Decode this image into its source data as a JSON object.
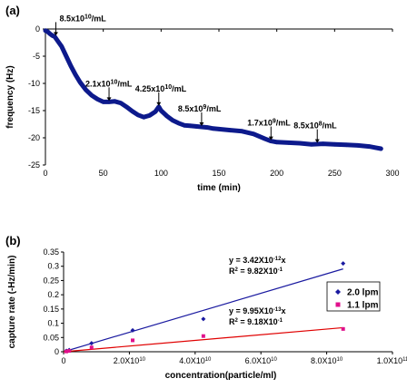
{
  "panels": {
    "a": "(a)",
    "b": "(b)"
  },
  "chart_data": [
    {
      "type": "line",
      "xlabel": "time (min)",
      "ylabel": "frequency (Hz)",
      "xlim": [
        0,
        300
      ],
      "ylim": [
        -25,
        0
      ],
      "xticks": [
        "0",
        "50",
        "100",
        "150",
        "200",
        "250",
        "300"
      ],
      "yticks": [
        "0",
        "-5",
        "-10",
        "-15",
        "-20",
        "-25"
      ],
      "color": "#0d1a8c",
      "grid": false,
      "series": [
        {
          "x": [
            0,
            2,
            4,
            6,
            8,
            10,
            14,
            18,
            22,
            26,
            30,
            35,
            40,
            45,
            50,
            55,
            60,
            65,
            70,
            75,
            80,
            85,
            90,
            95,
            98,
            100,
            105,
            110,
            115,
            120,
            125,
            130,
            135,
            140,
            145,
            150,
            160,
            170,
            180,
            190,
            195,
            200,
            210,
            220,
            230,
            240,
            250,
            260,
            270,
            280,
            285,
            290
          ],
          "y": [
            -0.3,
            -0.5,
            -0.9,
            -1.2,
            -1.4,
            -2.0,
            -3.2,
            -5.0,
            -6.8,
            -8.4,
            -9.8,
            -11.2,
            -12.2,
            -12.9,
            -13.4,
            -13.4,
            -13.3,
            -13.6,
            -14.3,
            -15.1,
            -15.8,
            -16.2,
            -15.9,
            -15.2,
            -14.3,
            -15.0,
            -16.0,
            -16.8,
            -17.3,
            -17.7,
            -17.8,
            -17.9,
            -18.0,
            -18.1,
            -18.3,
            -18.4,
            -18.6,
            -18.8,
            -19.3,
            -20.2,
            -20.6,
            -20.8,
            -20.9,
            -21.0,
            -21.2,
            -21.1,
            -21.2,
            -21.3,
            -21.4,
            -21.6,
            -21.8,
            -22.0
          ]
        }
      ],
      "annotations": [
        {
          "base": "8.5x10",
          "exp": "10",
          "unit": "/mL",
          "x": 9,
          "y": -1.4
        },
        {
          "base": "2.1x10",
          "exp": "10",
          "unit": "/mL",
          "x": 55,
          "y": -13.4
        },
        {
          "base": "4.25x10",
          "exp": "10",
          "unit": "/mL",
          "x": 98,
          "y": -14.3
        },
        {
          "base": "8.5x10",
          "exp": "9",
          "unit": "/mL",
          "x": 135,
          "y": -18.0
        },
        {
          "base": "1.7x10",
          "exp": "9",
          "unit": "/mL",
          "x": 195,
          "y": -20.6
        },
        {
          "base": "8.5x10",
          "exp": "8",
          "unit": "/mL",
          "x": 235,
          "y": -21.1
        }
      ]
    },
    {
      "type": "scatter",
      "xlabel": "concentration(particle/ml)",
      "ylabel": "capture rate (-Hz/min)",
      "xlim": [
        0,
        100000000000
      ],
      "ylim": [
        0,
        0.35
      ],
      "yticks": [
        "0",
        "0.05",
        "0.1",
        "0.15",
        "0.2",
        "0.25",
        "0.3",
        "0.35"
      ],
      "xticks": [
        {
          "v": 0,
          "base": "0",
          "exp": ""
        },
        {
          "v": 20000000000,
          "base": "2.0X10",
          "exp": "10"
        },
        {
          "v": 40000000000,
          "base": "4.0X10",
          "exp": "10"
        },
        {
          "v": 60000000000,
          "base": "6.0X10",
          "exp": "10"
        },
        {
          "v": 80000000000,
          "base": "8.0X10",
          "exp": "10"
        },
        {
          "v": 100000000000,
          "base": "1.0X10",
          "exp": "11"
        }
      ],
      "legend_position": "right",
      "series": [
        {
          "name": "2.0 lpm",
          "color": "#1a1aa0",
          "marker": "diamond",
          "x": [
            850000000,
            1700000000,
            8500000000,
            21000000000,
            42500000000,
            85000000000
          ],
          "y": [
            0.003,
            0.006,
            0.03,
            0.075,
            0.115,
            0.31
          ],
          "fit_slope": 3.42e-12,
          "equation": {
            "base": "y = 3.42X10",
            "exp": "-12",
            "tail": "x"
          },
          "r2": {
            "base": "R",
            "sup": "2",
            "mid": " = 9.82X10",
            "exp": "-1"
          }
        },
        {
          "name": "1.1 lpm",
          "color": "#e0108c",
          "marker": "square",
          "fit_color": "#e00000",
          "x": [
            850000000,
            1700000000,
            8500000000,
            21000000000,
            42500000000,
            85000000000
          ],
          "y": [
            0.001,
            0.003,
            0.015,
            0.04,
            0.055,
            0.08
          ],
          "fit_slope": 9.95e-13,
          "equation": {
            "base": "y = 9.95X10",
            "exp": "-13",
            "tail": "x"
          },
          "r2": {
            "base": "R",
            "sup": "2",
            "mid": " = 9.18X10",
            "exp": "-1"
          }
        }
      ]
    }
  ]
}
